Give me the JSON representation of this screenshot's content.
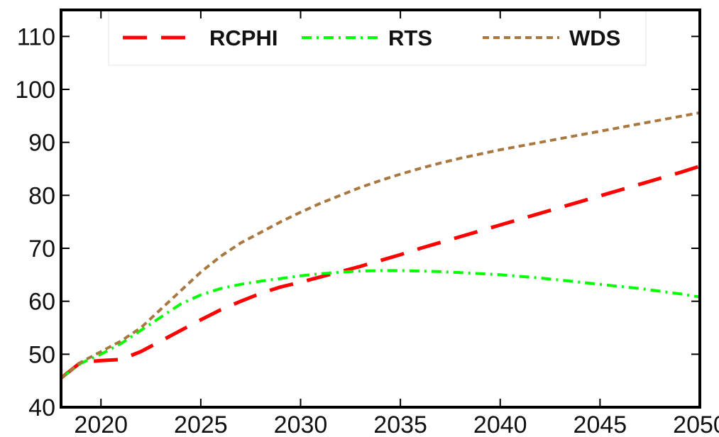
{
  "chart_data": {
    "type": "line",
    "title": "",
    "xlabel": "",
    "ylabel": "",
    "xlim": [
      2018,
      2050
    ],
    "ylim": [
      40,
      115
    ],
    "x_ticks": [
      2020,
      2025,
      2030,
      2035,
      2040,
      2045,
      2050
    ],
    "y_ticks": [
      40,
      50,
      60,
      70,
      80,
      90,
      100,
      110
    ],
    "grid": false,
    "legend": {
      "position": "top",
      "entries": [
        "RCPHI",
        "RTS",
        "WDS"
      ]
    },
    "series": [
      {
        "name": "RCPHI",
        "color": "#ff0000",
        "dash": "long-dash",
        "x": [
          2018,
          2019,
          2020,
          2021,
          2022,
          2023,
          2024,
          2025,
          2026,
          2027,
          2028,
          2029,
          2030,
          2031,
          2032,
          2033,
          2034,
          2035,
          2036,
          2037,
          2038,
          2039,
          2040,
          2041,
          2042,
          2043,
          2044,
          2045,
          2046,
          2047,
          2048,
          2049,
          2050
        ],
        "values": [
          45.5,
          48.5,
          48.8,
          49.0,
          50.5,
          52.5,
          54.5,
          56.5,
          58.4,
          60.0,
          61.5,
          62.7,
          63.6,
          64.6,
          65.6,
          66.6,
          67.7,
          68.8,
          70.0,
          71.1,
          72.2,
          73.3,
          74.4,
          75.5,
          76.6,
          77.7,
          78.8,
          79.9,
          81.0,
          82.1,
          83.2,
          84.3,
          85.5
        ]
      },
      {
        "name": "RTS",
        "color": "#00ff00",
        "dash": "dash-dot",
        "x": [
          2018,
          2019,
          2020,
          2021,
          2022,
          2023,
          2024,
          2025,
          2026,
          2027,
          2028,
          2029,
          2030,
          2031,
          2032,
          2033,
          2034,
          2035,
          2036,
          2037,
          2038,
          2039,
          2040,
          2041,
          2042,
          2043,
          2044,
          2045,
          2046,
          2047,
          2048,
          2049,
          2050
        ],
        "values": [
          45.5,
          48.3,
          50.0,
          52.0,
          54.5,
          57.0,
          59.5,
          61.2,
          62.4,
          63.2,
          63.8,
          64.3,
          64.8,
          65.2,
          65.5,
          65.7,
          65.8,
          65.8,
          65.7,
          65.6,
          65.4,
          65.2,
          65.0,
          64.7,
          64.4,
          64.0,
          63.6,
          63.2,
          62.8,
          62.4,
          61.9,
          61.4,
          60.8
        ]
      },
      {
        "name": "WDS",
        "color": "#a87840",
        "dash": "short-dash",
        "x": [
          2018,
          2019,
          2020,
          2021,
          2022,
          2023,
          2024,
          2025,
          2026,
          2027,
          2028,
          2029,
          2030,
          2031,
          2032,
          2033,
          2034,
          2035,
          2036,
          2037,
          2038,
          2039,
          2040,
          2041,
          2042,
          2043,
          2044,
          2045,
          2046,
          2047,
          2048,
          2049,
          2050
        ],
        "values": [
          45.5,
          48.5,
          50.5,
          52.5,
          55.0,
          58.5,
          62.0,
          65.5,
          68.5,
          71.0,
          73.0,
          75.0,
          76.8,
          78.5,
          80.0,
          81.5,
          82.8,
          84.0,
          85.1,
          86.1,
          87.0,
          87.8,
          88.6,
          89.3,
          90.0,
          90.7,
          91.4,
          92.1,
          92.8,
          93.5,
          94.2,
          94.9,
          95.6
        ]
      }
    ]
  }
}
